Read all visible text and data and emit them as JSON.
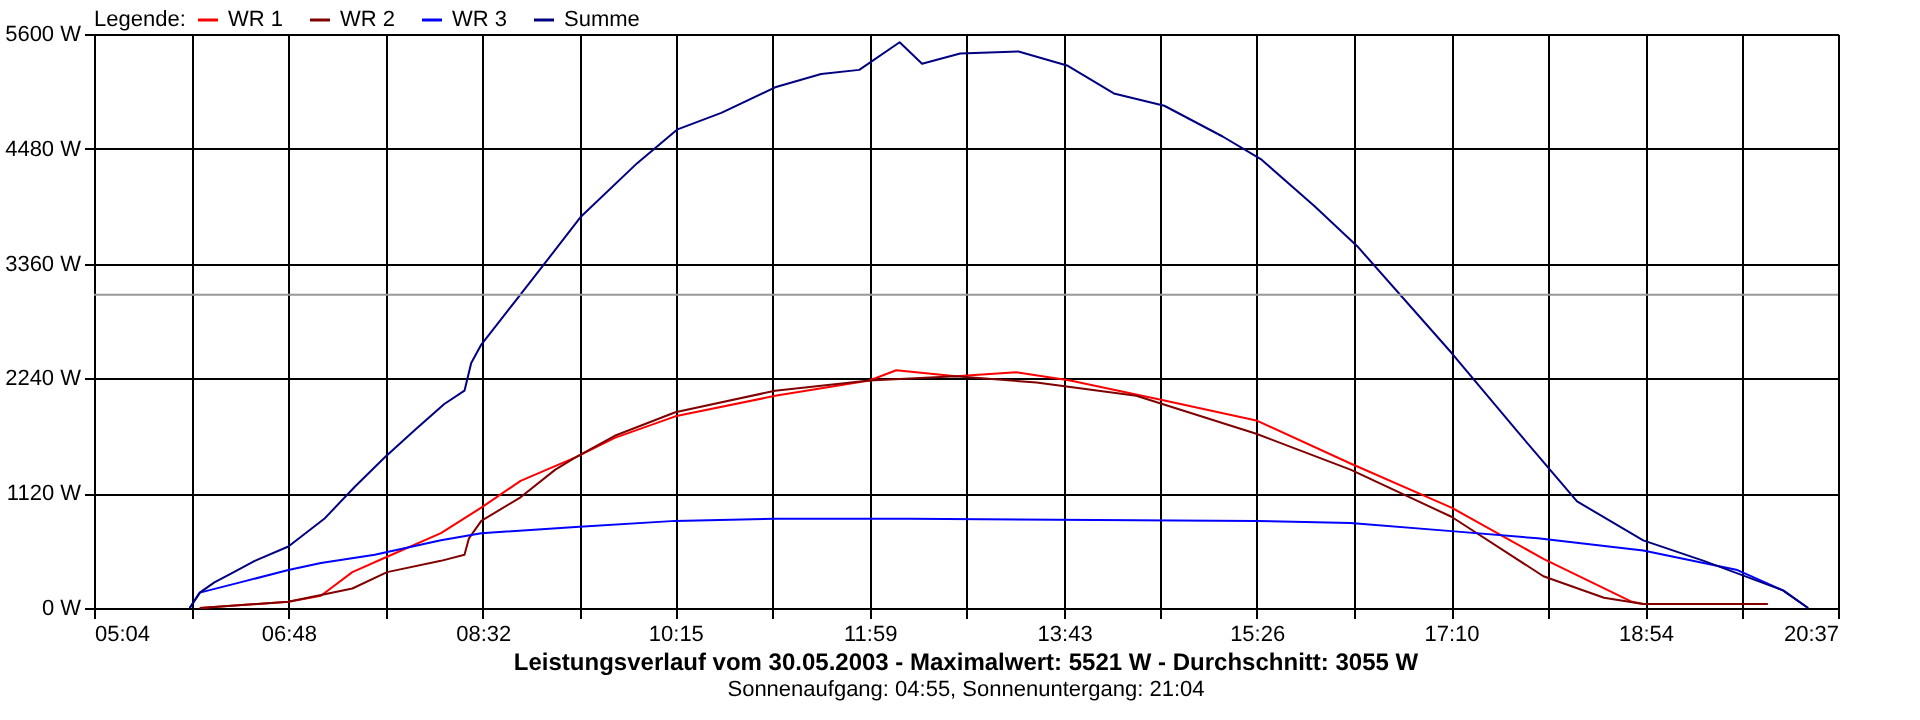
{
  "chart_data": {
    "type": "line",
    "title": "Leistungsverlauf vom 30.05.2003 - Maximalwert: 5521 W - Durchschnitt: 3055 W",
    "subtitle": "Sonnenaufgang: 04:55, Sonnenuntergang: 21:04",
    "legend_title": "Legende:",
    "legend": "top left",
    "grid": true,
    "xlim": [
      5.0667,
      20.6167
    ],
    "xticks": [
      {
        "value": 5.0667,
        "label": "05:04"
      },
      {
        "value": 5.9333,
        "label": null
      },
      {
        "value": 6.8,
        "label": "06:48"
      },
      {
        "value": 7.6667,
        "label": null
      },
      {
        "value": 8.5333,
        "label": "08:32"
      },
      {
        "value": 9.3917,
        "label": null
      },
      {
        "value": 10.25,
        "label": "10:15"
      },
      {
        "value": 11.1167,
        "label": null
      },
      {
        "value": 11.9833,
        "label": "11:59"
      },
      {
        "value": 12.85,
        "label": null
      },
      {
        "value": 13.7167,
        "label": "13:43"
      },
      {
        "value": 14.575,
        "label": null
      },
      {
        "value": 15.4333,
        "label": "15:26"
      },
      {
        "value": 16.3,
        "label": null
      },
      {
        "value": 17.1667,
        "label": "17:10"
      },
      {
        "value": 18.0333,
        "label": null
      },
      {
        "value": 18.9,
        "label": "18:54"
      },
      {
        "value": 19.7583,
        "label": null
      },
      {
        "value": 20.6167,
        "label": "20:37"
      }
    ],
    "ylim": [
      0,
      5600
    ],
    "yticks": [
      {
        "value": 0,
        "label": "0 W"
      },
      {
        "value": 1120,
        "label": "1120 W"
      },
      {
        "value": 2240,
        "label": "2240 W"
      },
      {
        "value": 3360,
        "label": "3360 W"
      },
      {
        "value": 4480,
        "label": "4480 W"
      },
      {
        "value": 5600,
        "label": "5600 W"
      }
    ],
    "ref_lines": [
      {
        "axis": "y",
        "value": 3055,
        "label": null,
        "color": "#999999"
      }
    ],
    "series": [
      {
        "name": "WR 1",
        "color": "#ff0000",
        "x": [
          6.01,
          6.8,
          7.09,
          7.37,
          7.68,
          8.16,
          8.52,
          8.87,
          9.36,
          9.71,
          10.25,
          11.14,
          11.98,
          12.22,
          12.75,
          13.29,
          13.77,
          14.59,
          15.43,
          16.27,
          17.17,
          17.99,
          18.78,
          18.88,
          19.99
        ],
        "values": [
          0,
          60,
          120,
          350,
          500,
          730,
          980,
          1240,
          1470,
          1660,
          1870,
          2070,
          2220,
          2320,
          2260,
          2300,
          2220,
          2030,
          1830,
          1410,
          980,
          480,
          60,
          40,
          40
        ]
      },
      {
        "name": "WR 2",
        "color": "#800000",
        "x": [
          6.01,
          6.8,
          7.37,
          7.68,
          8.16,
          8.37,
          8.41,
          8.52,
          8.87,
          9.18,
          9.36,
          9.71,
          10.25,
          11.14,
          11.98,
          12.75,
          13.47,
          14.36,
          15.43,
          16.27,
          17.17,
          17.99,
          18.53,
          18.88,
          19.99
        ],
        "values": [
          0,
          60,
          190,
          350,
          460,
          520,
          680,
          850,
          1080,
          1350,
          1470,
          1680,
          1910,
          2120,
          2220,
          2260,
          2200,
          2070,
          1700,
          1350,
          890,
          310,
          100,
          40,
          40
        ]
      },
      {
        "name": "WR 3",
        "color": "#0000ff",
        "x": [
          5.92,
          6.01,
          6.37,
          6.8,
          7.09,
          7.57,
          8.16,
          8.52,
          9.36,
          10.25,
          11.14,
          12.34,
          15.43,
          16.27,
          17.17,
          17.94,
          18.88,
          19.72,
          20.13,
          20.35
        ],
        "values": [
          0,
          150,
          250,
          370,
          440,
          520,
          660,
          730,
          790,
          850,
          870,
          870,
          850,
          830,
          750,
          680,
          560,
          370,
          170,
          0
        ]
      },
      {
        "name": "Summe",
        "color": "#000080",
        "x": [
          5.92,
          6.01,
          6.14,
          6.28,
          6.5,
          6.8,
          7.12,
          7.39,
          7.66,
          7.93,
          8.19,
          8.37,
          8.43,
          8.52,
          8.82,
          9.07,
          9.41,
          9.91,
          10.27,
          10.66,
          11.14,
          11.55,
          11.89,
          12.25,
          12.45,
          12.79,
          13.31,
          13.75,
          14.16,
          14.61,
          15.13,
          15.47,
          15.95,
          16.33,
          17.17,
          17.76,
          18.29,
          18.88,
          19.42,
          20.13,
          20.35
        ],
        "values": [
          0,
          150,
          250,
          330,
          460,
          600,
          870,
          1180,
          1470,
          1740,
          1990,
          2120,
          2390,
          2570,
          2990,
          3340,
          3820,
          4340,
          4670,
          4830,
          5080,
          5210,
          5250,
          5520,
          5310,
          5410,
          5430,
          5290,
          5020,
          4900,
          4600,
          4380,
          3920,
          3530,
          2490,
          1720,
          1040,
          660,
          460,
          170,
          0
        ]
      }
    ]
  }
}
